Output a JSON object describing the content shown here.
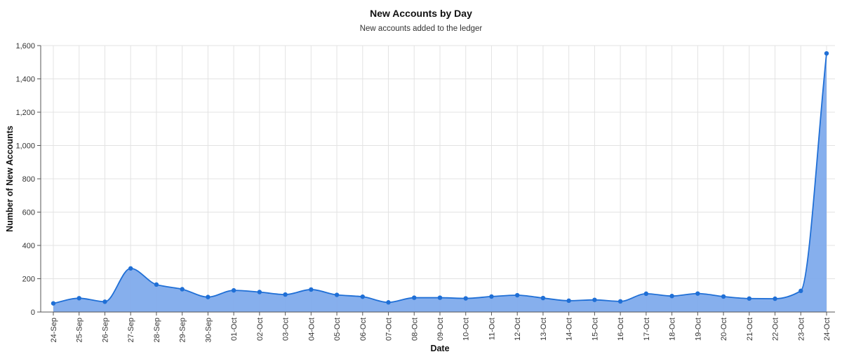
{
  "chart_data": {
    "type": "area",
    "title": "New Accounts by Day",
    "subtitle": "New accounts added to the ledger",
    "xlabel": "Date",
    "ylabel": "Number of New Accounts",
    "x": [
      "24-Sep",
      "25-Sep",
      "26-Sep",
      "27-Sep",
      "28-Sep",
      "29-Sep",
      "30-Sep",
      "01-Oct",
      "02-Oct",
      "03-Oct",
      "04-Oct",
      "05-Oct",
      "06-Oct",
      "07-Oct",
      "08-Oct",
      "09-Oct",
      "10-Oct",
      "11-Oct",
      "12-Oct",
      "13-Oct",
      "14-Oct",
      "15-Oct",
      "16-Oct",
      "17-Oct",
      "18-Oct",
      "19-Oct",
      "20-Oct",
      "21-Oct",
      "22-Oct",
      "23-Oct",
      "24-Oct"
    ],
    "values": [
      52,
      83,
      62,
      262,
      165,
      137,
      90,
      130,
      120,
      105,
      135,
      103,
      92,
      58,
      86,
      86,
      82,
      93,
      101,
      84,
      68,
      73,
      64,
      110,
      96,
      111,
      93,
      81,
      80,
      127,
      1553
    ],
    "ylim": [
      0,
      1600
    ],
    "yticks": [
      0,
      200,
      400,
      600,
      800,
      1000,
      1200,
      1400,
      1600
    ],
    "ytick_labels": [
      "0",
      "200",
      "400",
      "600",
      "800",
      "1,000",
      "1,200",
      "1,400",
      "1,600"
    ],
    "grid": true,
    "colors": {
      "line": "#1f6fd6",
      "fill": "#7fabec",
      "grid": "#e3e3e3",
      "axis": "#555555"
    }
  }
}
